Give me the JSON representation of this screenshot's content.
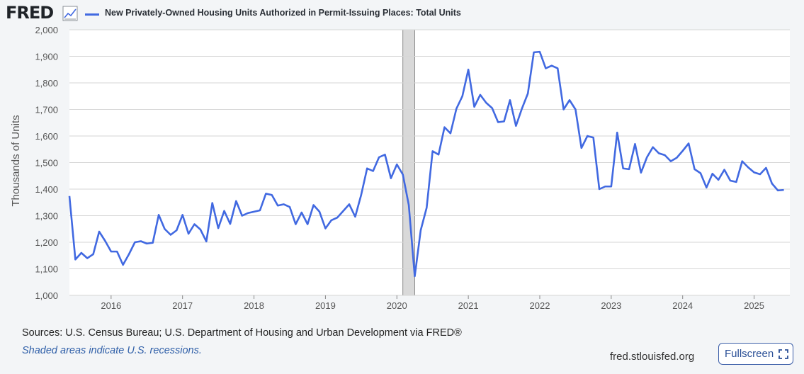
{
  "header": {
    "logo_text": "FRED",
    "logo_icon": "line-chart-icon",
    "legend_label": "New Privately-Owned Housing Units Authorized in Permit-Issuing Places: Total Units"
  },
  "footer": {
    "sources": "Sources: U.S. Census Bureau; U.S. Department of Housing and Urban Development via FRED®",
    "recessions_note": "Shaded areas indicate U.S. recessions.",
    "site": "fred.stlouisfed.org",
    "fullscreen_label": "Fullscreen",
    "fullscreen_icon": "fullscreen-icon"
  },
  "colors": {
    "series": "#4169e1",
    "recession_shade": "#d9d9d9",
    "grid": "#d6d6d6",
    "background": "#f3f5f7",
    "plot_background": "#ffffff"
  },
  "chart_data": {
    "type": "line",
    "title": "",
    "xlabel": "",
    "ylabel": "Thousands of Units",
    "ylim": [
      1000,
      2000
    ],
    "xlim": [
      2015.4167,
      2025.5
    ],
    "yticks": [
      1000,
      1100,
      1200,
      1300,
      1400,
      1500,
      1600,
      1700,
      1800,
      1900,
      2000
    ],
    "ytick_labels": [
      "1,000",
      "1,100",
      "1,200",
      "1,300",
      "1,400",
      "1,500",
      "1,600",
      "1,700",
      "1,800",
      "1,900",
      "2,000"
    ],
    "xticks": [
      2016,
      2017,
      2018,
      2019,
      2020,
      2021,
      2022,
      2023,
      2024,
      2025
    ],
    "xtick_labels": [
      "2016",
      "2017",
      "2018",
      "2019",
      "2020",
      "2021",
      "2022",
      "2023",
      "2024",
      "2025"
    ],
    "grid": true,
    "recessions": [
      {
        "start": "2020-02",
        "end": "2020-04"
      }
    ],
    "series": [
      {
        "name": "New Privately-Owned Housing Units Authorized in Permit-Issuing Places: Total Units",
        "start": "2015-06",
        "frequency": "monthly",
        "values": [
          1374,
          1135,
          1160,
          1140,
          1155,
          1240,
          1205,
          1165,
          1165,
          1115,
          1155,
          1200,
          1204,
          1195,
          1198,
          1303,
          1250,
          1228,
          1245,
          1303,
          1232,
          1268,
          1248,
          1203,
          1348,
          1253,
          1318,
          1269,
          1355,
          1300,
          1310,
          1315,
          1320,
          1383,
          1378,
          1338,
          1343,
          1333,
          1268,
          1312,
          1268,
          1340,
          1315,
          1252,
          1283,
          1293,
          1318,
          1343,
          1296,
          1378,
          1478,
          1468,
          1520,
          1530,
          1441,
          1493,
          1455,
          1340,
          1072,
          1245,
          1330,
          1543,
          1530,
          1633,
          1610,
          1703,
          1750,
          1850,
          1710,
          1755,
          1725,
          1705,
          1652,
          1655,
          1735,
          1638,
          1703,
          1760,
          1915,
          1917,
          1855,
          1865,
          1855,
          1700,
          1735,
          1700,
          1555,
          1600,
          1594,
          1400,
          1410,
          1410,
          1613,
          1478,
          1475,
          1570,
          1462,
          1520,
          1558,
          1535,
          1528,
          1505,
          1518,
          1544,
          1572,
          1475,
          1460,
          1406,
          1458,
          1435,
          1473,
          1432,
          1427,
          1505,
          1482,
          1463,
          1456,
          1480,
          1421,
          1395,
          1397
        ]
      }
    ]
  }
}
